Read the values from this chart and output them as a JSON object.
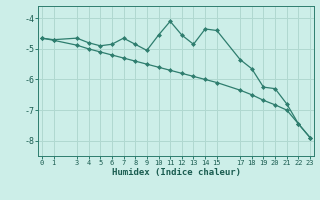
{
  "xlabel": "Humidex (Indice chaleur)",
  "bg_color": "#cceee8",
  "grid_color": "#b0d8d0",
  "line_color": "#2e7d6e",
  "x_line1": [
    0,
    1,
    3,
    4,
    5,
    6,
    7,
    8,
    9,
    10,
    11,
    12,
    13,
    14,
    15,
    17,
    18,
    19,
    20,
    21,
    22,
    23
  ],
  "y_line1": [
    -4.65,
    -4.7,
    -4.65,
    -4.8,
    -4.9,
    -4.85,
    -4.65,
    -4.85,
    -5.05,
    -4.55,
    -4.1,
    -4.55,
    -4.85,
    -4.35,
    -4.4,
    -5.35,
    -5.65,
    -6.25,
    -6.3,
    -6.8,
    -7.45,
    -7.9
  ],
  "x_line2": [
    0,
    1,
    3,
    4,
    5,
    6,
    7,
    8,
    9,
    10,
    11,
    12,
    13,
    14,
    15,
    17,
    18,
    19,
    20,
    21,
    22,
    23
  ],
  "y_line2": [
    -4.65,
    -4.72,
    -4.88,
    -5.0,
    -5.1,
    -5.2,
    -5.3,
    -5.4,
    -5.5,
    -5.6,
    -5.7,
    -5.8,
    -5.9,
    -6.0,
    -6.1,
    -6.35,
    -6.5,
    -6.68,
    -6.83,
    -7.0,
    -7.45,
    -7.9
  ],
  "xticks": [
    0,
    1,
    3,
    4,
    5,
    6,
    7,
    8,
    9,
    10,
    11,
    12,
    13,
    14,
    15,
    17,
    18,
    19,
    20,
    21,
    22,
    23
  ],
  "yticks": [
    -8,
    -7,
    -6,
    -5,
    -4
  ],
  "xlim": [
    -0.3,
    23.3
  ],
  "ylim": [
    -8.5,
    -3.6
  ]
}
